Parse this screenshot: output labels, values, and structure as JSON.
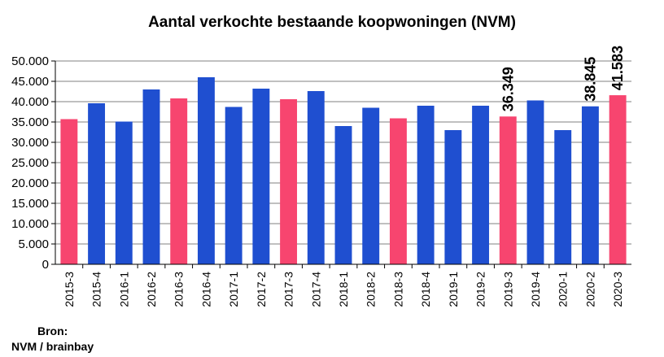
{
  "chart_data": {
    "type": "bar",
    "title": "Aantal verkochte bestaande koopwoningen (NVM)",
    "xlabel": "",
    "ylabel": "",
    "ylim": [
      0,
      50000
    ],
    "y_ticks": [
      0,
      5000,
      10000,
      15000,
      20000,
      25000,
      30000,
      35000,
      40000,
      45000,
      50000
    ],
    "y_tick_labels": [
      "0",
      "5.000",
      "10.000",
      "15.000",
      "20.000",
      "25.000",
      "30.000",
      "35.000",
      "40.000",
      "45.000",
      "50.000"
    ],
    "grid": true,
    "categories": [
      "2015-3",
      "2015-4",
      "2016-1",
      "2016-2",
      "2016-3",
      "2016-4",
      "2017-1",
      "2017-2",
      "2017-3",
      "2017-4",
      "2018-1",
      "2018-2",
      "2018-3",
      "2018-4",
      "2019-1",
      "2019-2",
      "2019-3",
      "2019-4",
      "2020-1",
      "2020-2",
      "2020-3"
    ],
    "values": [
      35700,
      39600,
      35100,
      43000,
      40800,
      46000,
      38700,
      43200,
      40600,
      42600,
      34000,
      38500,
      35900,
      39000,
      33000,
      39000,
      36349,
      40300,
      33000,
      38845,
      41583
    ],
    "highlighted": [
      true,
      false,
      false,
      false,
      true,
      false,
      false,
      false,
      true,
      false,
      false,
      false,
      true,
      false,
      false,
      false,
      true,
      false,
      false,
      false,
      true
    ],
    "data_labels": {
      "16": "36.349",
      "19": "38.845",
      "20": "41.583"
    },
    "colors": {
      "normal": "#1f4fd0",
      "highlight": "#f7456f"
    }
  },
  "source": {
    "line1": "Bron:",
    "line2": "NVM / brainbay"
  }
}
